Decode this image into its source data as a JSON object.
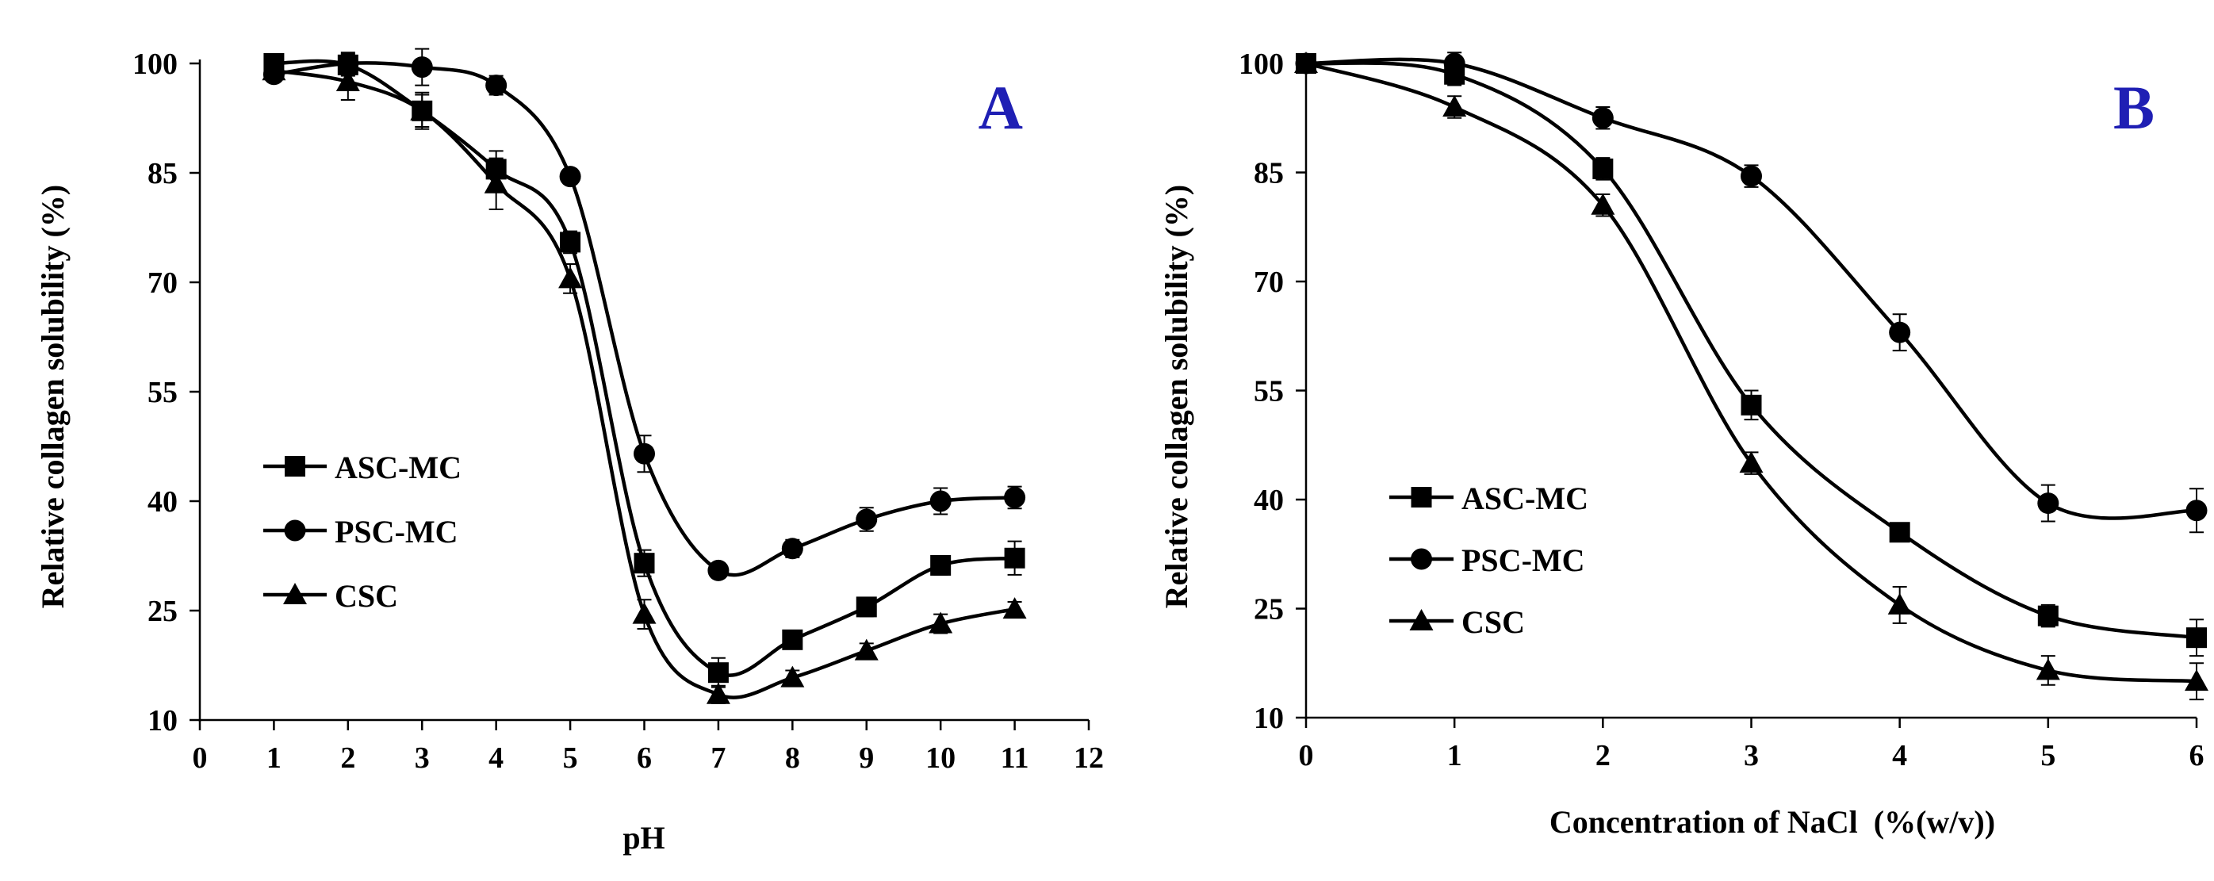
{
  "colors": {
    "line": "#000000",
    "panel_letter": "#1f1fb4"
  },
  "chart_data": [
    {
      "type": "line",
      "panel_label": "A",
      "xlabel": "pH",
      "ylabel": "Relative collagen solubility (%)",
      "xlim": [
        0,
        12
      ],
      "ylim": [
        10,
        100
      ],
      "xticks": [
        "0",
        "1",
        "2",
        "3",
        "4",
        "5",
        "6",
        "7",
        "8",
        "9",
        "10",
        "11",
        "12"
      ],
      "yticks": [
        "10",
        "25",
        "40",
        "55",
        "70",
        "85",
        "100"
      ],
      "x": [
        1,
        2,
        3,
        4,
        5,
        6,
        7,
        8,
        9,
        10,
        11
      ],
      "series": [
        {
          "name": "ASC-MC",
          "marker": "square",
          "values": [
            100,
            99.8,
            93.5,
            85.5,
            75.5,
            31.5,
            16.5,
            21,
            25.5,
            31.2,
            32.2
          ],
          "errors": [
            0.8,
            1.5,
            2.2,
            2.5,
            1.5,
            1.8,
            2,
            1.2,
            1.3,
            1.3,
            2.3
          ]
        },
        {
          "name": "PSC-MC",
          "marker": "circle",
          "values": [
            98.5,
            100,
            99.5,
            97,
            84.5,
            46.5,
            30.5,
            33.5,
            37.5,
            40,
            40.5
          ],
          "errors": [
            0.8,
            1.5,
            2.5,
            1.3,
            1,
            2.5,
            1,
            1.2,
            1.6,
            1.8,
            1.5
          ]
        },
        {
          "name": "CSC",
          "marker": "triangle",
          "values": [
            99,
            97.5,
            93.5,
            83.5,
            70.5,
            24.5,
            13.5,
            15.8,
            19.5,
            23.2,
            25.2
          ],
          "errors": [
            1,
            2.5,
            2.5,
            3.5,
            2,
            2,
            1.2,
            1,
            1,
            1.3,
            1
          ]
        }
      ],
      "legend_position": "center-left"
    },
    {
      "type": "line",
      "panel_label": "B",
      "xlabel": "Concentration of NaCl  (%(w/v))",
      "ylabel": "Relative collagen solubility (%)",
      "xlim": [
        0,
        6
      ],
      "ylim": [
        10,
        100
      ],
      "xticks": [
        "0",
        "1",
        "2",
        "3",
        "4",
        "5",
        "6"
      ],
      "yticks": [
        "10",
        "25",
        "40",
        "55",
        "70",
        "85",
        "100"
      ],
      "x": [
        0,
        1,
        2,
        3,
        4,
        5,
        6
      ],
      "series": [
        {
          "name": "ASC-MC",
          "marker": "square",
          "values": [
            100,
            98.5,
            85.5,
            53,
            35.5,
            24,
            21
          ],
          "errors": [
            1,
            1.5,
            1.5,
            2,
            1,
            1.5,
            2.5
          ]
        },
        {
          "name": "PSC-MC",
          "marker": "circle",
          "values": [
            100,
            100,
            92.5,
            84.5,
            63,
            39.5,
            38.5
          ],
          "errors": [
            1,
            1.5,
            1.5,
            1.5,
            2.5,
            2.5,
            3
          ]
        },
        {
          "name": "CSC",
          "marker": "triangle",
          "values": [
            100,
            94,
            80.5,
            45,
            25.5,
            16.5,
            15
          ],
          "errors": [
            1,
            1.5,
            1.5,
            1.5,
            2.5,
            2,
            2.5
          ]
        }
      ],
      "legend_position": "center-left"
    }
  ]
}
